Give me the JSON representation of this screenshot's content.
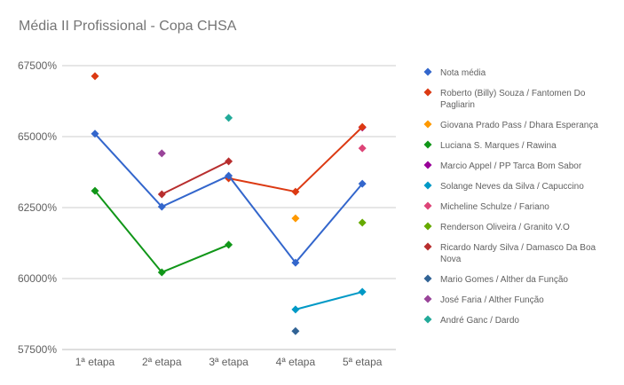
{
  "chart_data": {
    "type": "line",
    "title": "Média II Profissional - Copa CHSA",
    "categories": [
      "1ª etapa",
      "2ª etapa",
      "3ª etapa",
      "4ª etapa",
      "5ª etapa"
    ],
    "ylim": [
      57500,
      67500
    ],
    "yticks": [
      57500,
      60000,
      62500,
      65000,
      67500
    ],
    "ytick_labels": [
      "57500%",
      "60000%",
      "62500%",
      "65000%",
      "67500%"
    ],
    "grid": true,
    "legend_position": "right",
    "series": [
      {
        "name": "Nota média",
        "color": "#3366cc",
        "values": [
          65100,
          62530,
          63620,
          60560,
          63340
        ]
      },
      {
        "name": "Roberto (Billy) Souza / Fantomen Do Pagliarin",
        "color": "#dc3912",
        "values": [
          67130,
          null,
          63530,
          63060,
          65340
        ]
      },
      {
        "name": "Giovana Prado Pass / Dhara Esperança",
        "color": "#ff9900",
        "values": [
          null,
          null,
          null,
          62120,
          null
        ]
      },
      {
        "name": "Luciana S. Marques / Rawina",
        "color": "#109618",
        "values": [
          63090,
          60220,
          61190,
          null,
          null
        ]
      },
      {
        "name": "Marcio Appel / PP Tarca Bom Sabor",
        "color": "#990099",
        "values": [
          null,
          null,
          null,
          null,
          65320
        ]
      },
      {
        "name": "Solange Neves da Silva / Capuccino",
        "color": "#0099c6",
        "values": [
          null,
          null,
          null,
          58910,
          59530
        ]
      },
      {
        "name": "Micheline Schulze / Fariano",
        "color": "#dd4477",
        "values": [
          null,
          null,
          null,
          null,
          64590
        ]
      },
      {
        "name": "Renderson Oliveira / Granito V.O",
        "color": "#66aa00",
        "values": [
          null,
          null,
          null,
          null,
          61970
        ]
      },
      {
        "name": "Ricardo Nardy Silva / Damasco Da Boa Nova",
        "color": "#b82e2e",
        "values": [
          null,
          62970,
          64130,
          null,
          null
        ]
      },
      {
        "name": "Mario Gomes / Alther da Função",
        "color": "#316395",
        "values": [
          null,
          null,
          null,
          58150,
          null
        ]
      },
      {
        "name": "José Faria / Alther Função",
        "color": "#994499",
        "values": [
          null,
          64410,
          null,
          null,
          null
        ]
      },
      {
        "name": "André Ganc / Dardo",
        "color": "#22aa99",
        "values": [
          null,
          null,
          65660,
          null,
          null
        ]
      }
    ]
  }
}
